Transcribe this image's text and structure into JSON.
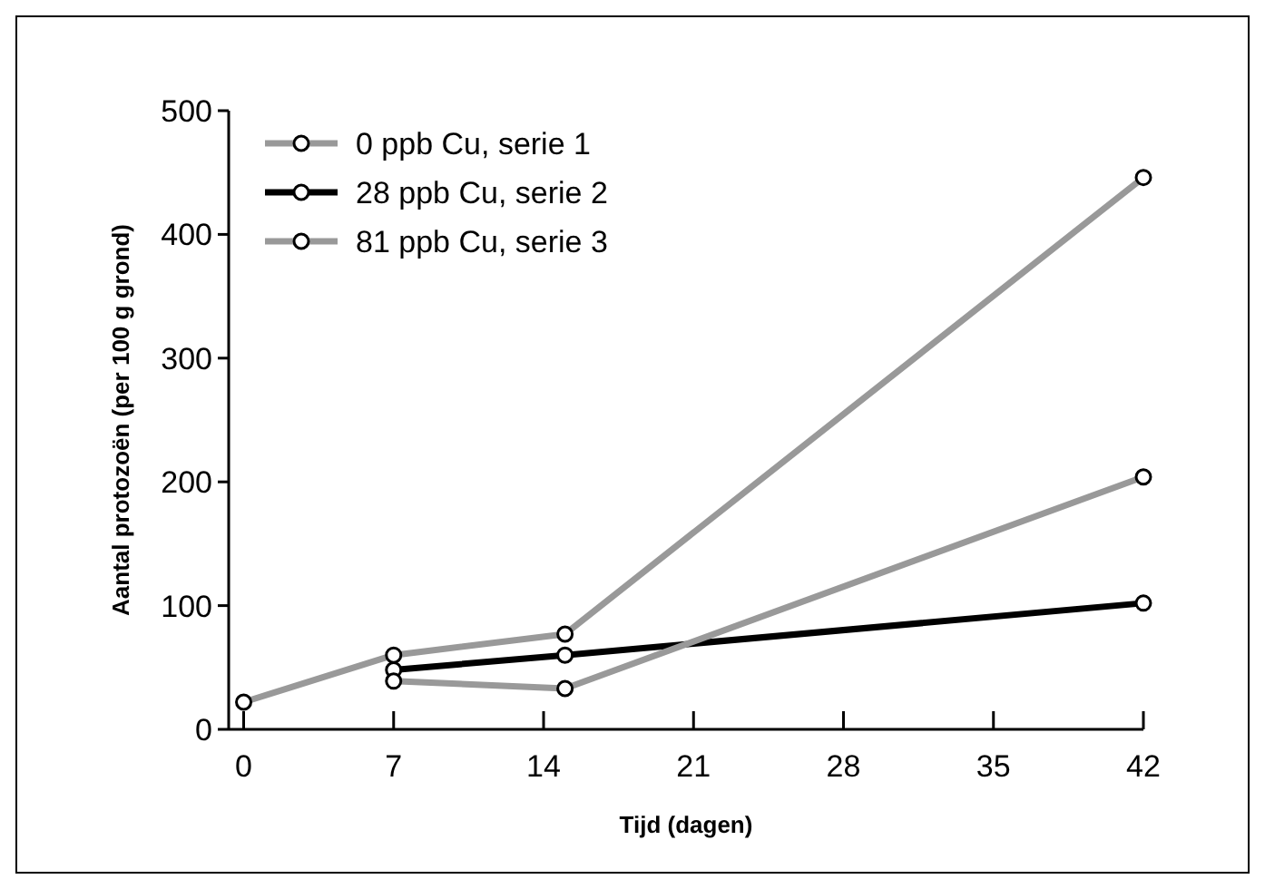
{
  "chart_data": {
    "type": "line",
    "xlabel": "Tijd (dagen)",
    "ylabel": "Aantal protozoën (per 100 g grond)",
    "xlim": [
      -0.7,
      42
    ],
    "xticks": [
      0,
      7,
      14,
      21,
      28,
      35,
      42
    ],
    "ylim": [
      0,
      500
    ],
    "yticks": [
      0,
      100,
      200,
      300,
      400,
      500
    ],
    "legend": "top left",
    "marker": "circle",
    "grid": false,
    "series": [
      {
        "name": "0 ppb Cu, serie 1",
        "color": "#999999",
        "x": [
          0,
          7,
          15,
          42
        ],
        "values": [
          22,
          60,
          77,
          446
        ]
      },
      {
        "name": "28 ppb Cu, serie 2",
        "color": "#000000",
        "x": [
          7,
          15,
          42
        ],
        "values": [
          48,
          60,
          102
        ]
      },
      {
        "name": "81 ppb Cu, serie 3",
        "color": "#999999",
        "x": [
          7,
          15,
          42
        ],
        "values": [
          39,
          33,
          204
        ]
      }
    ]
  }
}
